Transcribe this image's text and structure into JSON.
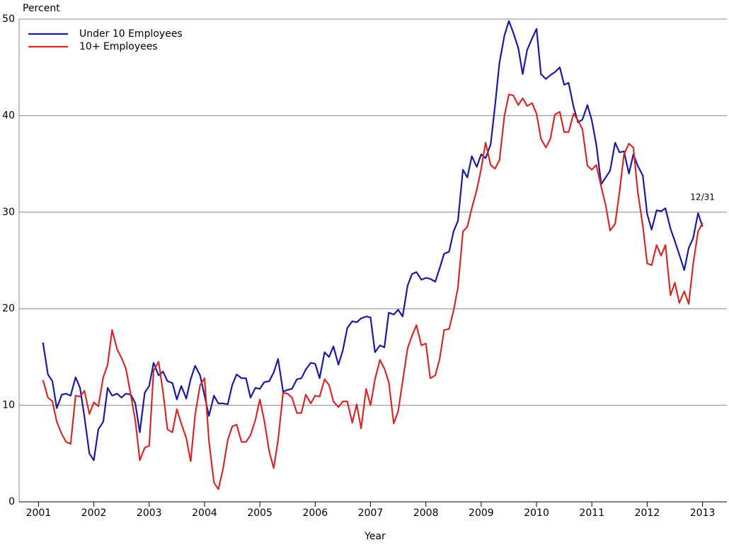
{
  "chart_data": {
    "type": "line",
    "y_label": "Percent",
    "x_label": "Year",
    "annotation": "12/31",
    "x": [
      2001.08,
      2001.17,
      2001.25,
      2001.33,
      2001.42,
      2001.5,
      2001.58,
      2001.67,
      2001.75,
      2001.83,
      2001.92,
      2002,
      2002.08,
      2002.17,
      2002.25,
      2002.33,
      2002.42,
      2002.5,
      2002.58,
      2002.67,
      2002.75,
      2002.83,
      2002.92,
      2003,
      2003.08,
      2003.17,
      2003.25,
      2003.33,
      2003.42,
      2003.5,
      2003.58,
      2003.67,
      2003.75,
      2003.83,
      2003.92,
      2004,
      2004.08,
      2004.17,
      2004.25,
      2004.33,
      2004.42,
      2004.5,
      2004.58,
      2004.67,
      2004.75,
      2004.83,
      2004.92,
      2005,
      2005.08,
      2005.17,
      2005.25,
      2005.33,
      2005.42,
      2005.5,
      2005.58,
      2005.67,
      2005.75,
      2005.83,
      2005.92,
      2006,
      2006.08,
      2006.17,
      2006.25,
      2006.33,
      2006.42,
      2006.5,
      2006.58,
      2006.67,
      2006.75,
      2006.83,
      2006.92,
      2007,
      2007.08,
      2007.17,
      2007.25,
      2007.33,
      2007.42,
      2007.5,
      2007.58,
      2007.67,
      2007.75,
      2007.83,
      2007.92,
      2008,
      2008.08,
      2008.17,
      2008.25,
      2008.33,
      2008.42,
      2008.5,
      2008.58,
      2008.67,
      2008.75,
      2008.83,
      2008.92,
      2009,
      2009.08,
      2009.17,
      2009.25,
      2009.33,
      2009.42,
      2009.5,
      2009.58,
      2009.67,
      2009.75,
      2009.83,
      2009.92,
      2010,
      2010.08,
      2010.17,
      2010.25,
      2010.33,
      2010.42,
      2010.5,
      2010.58,
      2010.67,
      2010.75,
      2010.83,
      2010.92,
      2011,
      2011.08,
      2011.17,
      2011.25,
      2011.33,
      2011.42,
      2011.5,
      2011.58,
      2011.67,
      2011.75,
      2011.83,
      2011.92,
      2012,
      2012.08,
      2012.17,
      2012.25,
      2012.33,
      2012.42,
      2012.5,
      2012.58,
      2012.67,
      2012.75,
      2012.83,
      2012.92,
      2013
    ],
    "series": [
      {
        "name": "Under 10 Employees",
        "color": "#1a1a9c",
        "values": [
          16.5,
          13.2,
          12.5,
          9.7,
          11.1,
          11.2,
          11.0,
          12.9,
          11.8,
          8.8,
          5.0,
          4.3,
          7.5,
          8.3,
          11.8,
          11.0,
          11.2,
          10.8,
          11.2,
          11.1,
          10.2,
          7.2,
          11.3,
          12.0,
          14.4,
          13.1,
          13.5,
          12.5,
          12.3,
          10.6,
          12.0,
          10.7,
          12.7,
          14.1,
          13.1,
          11.0,
          8.9,
          11.0,
          10.2,
          10.2,
          10.1,
          12.1,
          13.2,
          12.8,
          12.8,
          10.8,
          11.8,
          11.7,
          12.4,
          12.5,
          13.4,
          14.8,
          11.4,
          11.6,
          11.7,
          12.7,
          12.8,
          13.7,
          14.4,
          14.3,
          12.8,
          15.5,
          15.0,
          16.1,
          14.2,
          15.7,
          18.0,
          18.7,
          18.6,
          19.0,
          19.2,
          19.1,
          15.5,
          16.2,
          16.0,
          19.6,
          19.4,
          19.9,
          19.2,
          22.4,
          23.6,
          23.8,
          23.0,
          23.2,
          23.1,
          22.8,
          24.2,
          25.7,
          25.9,
          28.0,
          29.1,
          34.4,
          33.6,
          35.8,
          34.7,
          36.0,
          35.6,
          37.0,
          41.0,
          45.5,
          48.3,
          49.8,
          48.6,
          47.0,
          44.3,
          46.8,
          48.0,
          49.0,
          44.3,
          43.8,
          44.2,
          44.5,
          45.0,
          43.2,
          43.4,
          40.9,
          39.3,
          39.6,
          41.1,
          39.5,
          37.0,
          32.9,
          33.6,
          34.3,
          37.2,
          36.2,
          36.3,
          34.0,
          36.0,
          34.8,
          33.8,
          29.8,
          28.2,
          30.2,
          30.1,
          30.4,
          28.3,
          27.0,
          25.6,
          24.0,
          26.3,
          27.3,
          29.9,
          28.5
        ]
      },
      {
        "name": "10+ Employees",
        "color": "#d22a2a",
        "values": [
          12.6,
          10.8,
          10.4,
          8.3,
          7.0,
          6.2,
          6.0,
          11.0,
          10.9,
          11.5,
          9.1,
          10.3,
          9.9,
          12.9,
          14.2,
          17.8,
          15.8,
          14.9,
          13.8,
          11.0,
          8.4,
          4.3,
          5.6,
          5.8,
          13.6,
          14.5,
          11.4,
          7.5,
          7.2,
          9.6,
          8.1,
          6.6,
          4.2,
          9.0,
          12.1,
          12.8,
          6.3,
          2.0,
          1.3,
          3.3,
          6.4,
          7.8,
          8.0,
          6.2,
          6.2,
          6.9,
          8.5,
          10.6,
          8.4,
          5.2,
          3.5,
          6.4,
          11.3,
          11.2,
          10.8,
          9.2,
          9.2,
          11.1,
          10.2,
          11.0,
          10.9,
          12.7,
          12.1,
          10.4,
          9.8,
          10.4,
          10.4,
          8.2,
          10.1,
          7.6,
          11.7,
          10.0,
          12.7,
          14.7,
          13.8,
          12.4,
          8.1,
          9.4,
          12.5,
          15.9,
          17.2,
          18.3,
          16.2,
          16.4,
          12.8,
          13.1,
          14.8,
          17.8,
          17.9,
          19.8,
          22.2,
          28.0,
          28.5,
          30.4,
          32.3,
          34.5,
          37.2,
          34.9,
          34.5,
          35.4,
          40.0,
          42.2,
          42.1,
          41.1,
          41.8,
          41.0,
          41.3,
          40.2,
          37.6,
          36.7,
          37.6,
          40.1,
          40.4,
          38.3,
          38.3,
          40.2,
          39.5,
          38.6,
          34.8,
          34.4,
          34.9,
          32.6,
          30.7,
          28.1,
          28.8,
          32.1,
          36.0,
          37.1,
          36.7,
          32.1,
          28.6,
          24.7,
          24.5,
          26.6,
          25.5,
          26.6,
          21.4,
          22.7,
          20.6,
          21.8,
          20.5,
          24.6,
          28.0,
          28.9
        ]
      }
    ],
    "xlim": [
      2000.79,
      2013.44
    ],
    "ylim": [
      0,
      50
    ],
    "xticks": [
      2001,
      2002,
      2003,
      2004,
      2005,
      2006,
      2007,
      2008,
      2009,
      2010,
      2011,
      2012,
      2013
    ],
    "yticks": [
      0,
      10,
      20,
      30,
      40,
      50
    ],
    "grid": true,
    "legend": "upper left"
  }
}
